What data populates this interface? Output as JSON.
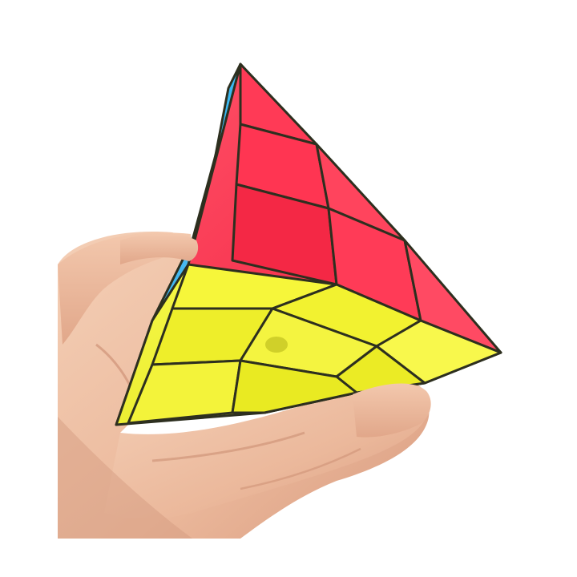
{
  "photo": {
    "subject": "pyramid-puzzle-cube-in-hand",
    "colors": {
      "background": "#ffffff",
      "skin": "#efc3a6",
      "skin_shadow": "#cf9479",
      "red_face": "#ff2b4c",
      "red_shade": "#e8193a",
      "yellow_face": "#f5f42a",
      "yellow_shade": "#dfe21b",
      "blue_face": "#38b6f2",
      "blue_shade": "#1f98df",
      "edge_dark": "#2d2f1f"
    }
  }
}
